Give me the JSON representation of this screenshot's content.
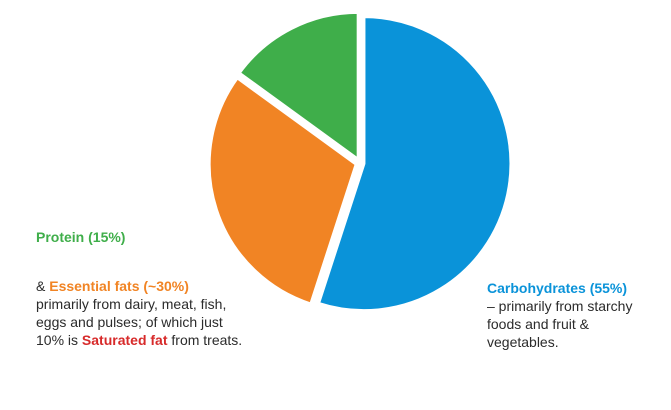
{
  "colors": {
    "carbohydrates": "#0a93d9",
    "fats": "#f18424",
    "protein": "#3fae4a",
    "saturated": "#d72a2a",
    "text": "#2b2b2b"
  },
  "labels": {
    "protein": {
      "title": "Protein (15%)"
    },
    "fats": {
      "prefix": "& ",
      "title": "Essential fats (~30%)",
      "line1": "primarily from dairy, meat, fish,",
      "line2": "eggs and pulses;  of which just",
      "line3_before": "10% is ",
      "line3_highlight": "Saturated fat",
      "line3_after": " from treats."
    },
    "carbohydrates": {
      "title": "Carbohydrates (55%)",
      "line1": "–  primarily from starchy",
      "line2": "foods and fruit &",
      "line3": "vegetables."
    }
  },
  "chart_data": {
    "type": "pie",
    "slices": [
      {
        "label": "Carbohydrates",
        "value": 55,
        "color": "#0a93d9"
      },
      {
        "label": "Essential fats",
        "value": 30,
        "color": "#f18424"
      },
      {
        "label": "Protein",
        "value": 15,
        "color": "#3fae4a"
      }
    ],
    "start_angle": "12 o'clock",
    "direction": "clockwise",
    "legend": "none"
  }
}
